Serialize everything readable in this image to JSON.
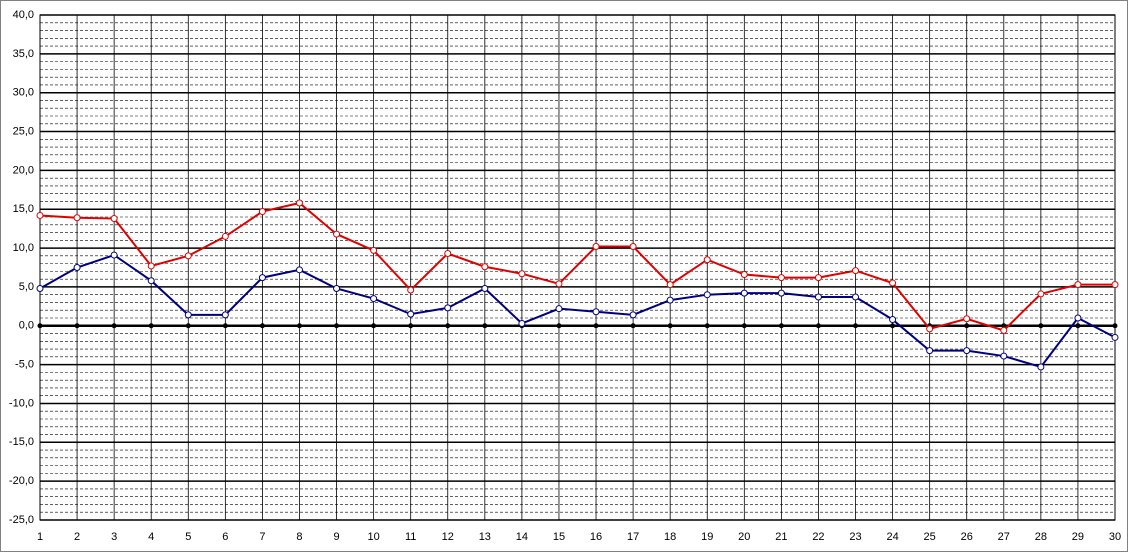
{
  "chart_data": {
    "type": "line",
    "x": [
      1,
      2,
      3,
      4,
      5,
      6,
      7,
      8,
      9,
      10,
      11,
      12,
      13,
      14,
      15,
      16,
      17,
      18,
      19,
      20,
      21,
      22,
      23,
      24,
      25,
      26,
      27,
      28,
      29,
      30
    ],
    "xlim": [
      1,
      30
    ],
    "series": [
      {
        "color": "#e00000",
        "values": [
          14.2,
          13.9,
          13.8,
          7.7,
          9.0,
          11.5,
          14.7,
          15.8,
          11.8,
          9.7,
          4.6,
          9.3,
          7.6,
          6.7,
          5.4,
          10.2,
          10.2,
          5.3,
          8.5,
          6.6,
          6.2,
          6.2,
          7.1,
          5.5,
          -0.4,
          0.9,
          -0.6,
          4.1,
          5.3,
          5.3
        ]
      },
      {
        "color": "#000080",
        "values": [
          4.8,
          7.5,
          9.1,
          5.8,
          1.4,
          1.4,
          6.2,
          7.2,
          4.8,
          3.5,
          1.5,
          2.3,
          4.8,
          0.3,
          2.2,
          1.8,
          1.4,
          3.3,
          4.0,
          4.2,
          4.2,
          3.7,
          3.7,
          0.8,
          -3.2,
          -3.2,
          -3.9,
          -5.3,
          1.0,
          -1.5
        ]
      }
    ],
    "ylim": [
      -25,
      40
    ],
    "yticks": [
      {
        "value": -25,
        "label": "-25,0"
      },
      {
        "value": -20,
        "label": "-20,0"
      },
      {
        "value": -15,
        "label": "-15,0"
      },
      {
        "value": -10,
        "label": "-10,0"
      },
      {
        "value": -5,
        "label": "-5,0"
      },
      {
        "value": 0,
        "label": "0,0"
      },
      {
        "value": 5,
        "label": "5,0"
      },
      {
        "value": 10,
        "label": "10,0"
      },
      {
        "value": 15,
        "label": "15,0"
      },
      {
        "value": 20,
        "label": "20,0"
      },
      {
        "value": 25,
        "label": "25,0"
      },
      {
        "value": 30,
        "label": "30,0"
      },
      {
        "value": 35,
        "label": "35,0"
      },
      {
        "value": 40,
        "label": "40,0"
      }
    ],
    "grid": true
  }
}
